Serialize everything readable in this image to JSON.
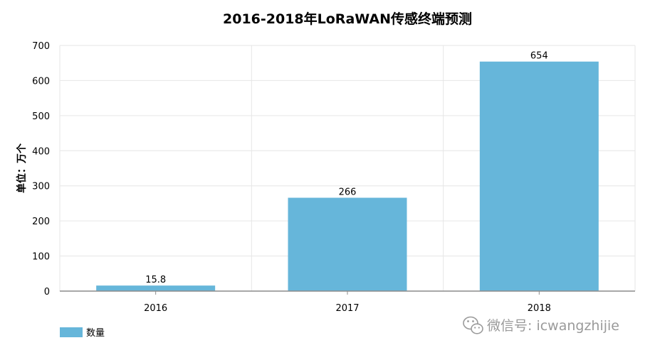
{
  "chart_data": {
    "type": "bar",
    "title": "2016-2018年LoRaWAN传感终端预测",
    "xlabel": "",
    "ylabel": "单位：万个",
    "categories": [
      "2016",
      "2017",
      "2018"
    ],
    "series": [
      {
        "name": "数量",
        "values": [
          15.8,
          266,
          654
        ],
        "labels": [
          "15.8",
          "266",
          "654"
        ]
      }
    ],
    "ylim": [
      0,
      700
    ],
    "yticks": [
      0,
      100,
      200,
      300,
      400,
      500,
      600,
      700
    ],
    "grid": true,
    "legend": "bottom-left",
    "bar_color": "#66b6da"
  },
  "watermark": {
    "text": "微信号: icwangzhijie",
    "icon": "wechat-icon"
  }
}
